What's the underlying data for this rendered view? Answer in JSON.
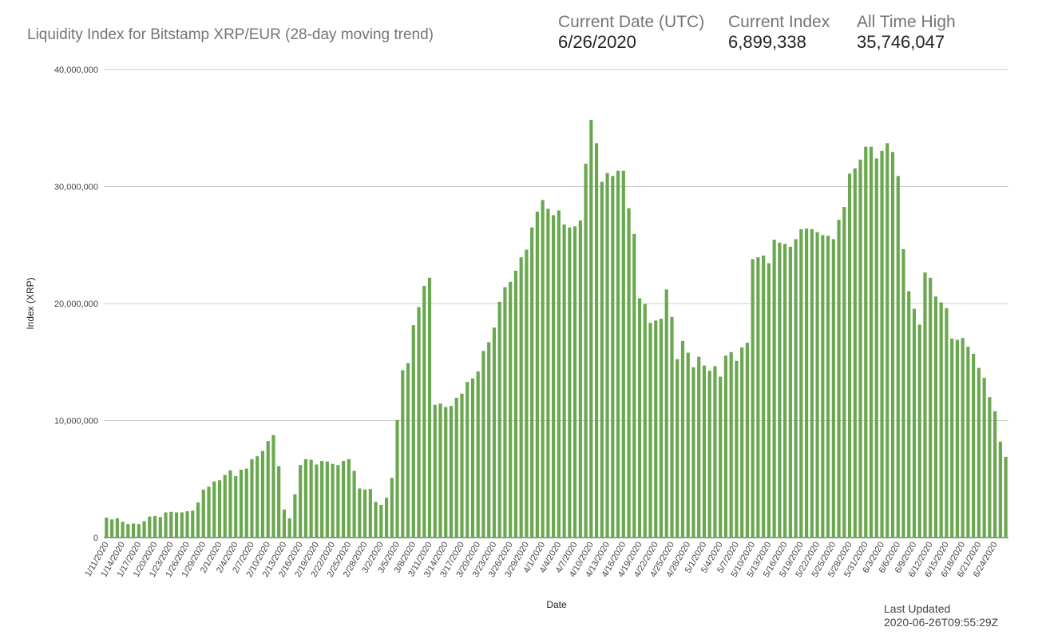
{
  "title": "Liquidity Index for Bitstamp XRP/EUR (28-day moving trend)",
  "stats": [
    {
      "label": "Current Date (UTC)",
      "value": "6/26/2020"
    },
    {
      "label": "Current Index",
      "value": "6,899,338"
    },
    {
      "label": "All Time High",
      "value": "35,746,047"
    }
  ],
  "last_updated": {
    "label": "Last Updated",
    "value": "2020-06-26T09:55:29Z"
  },
  "colors": {
    "bar": "#6aa84f",
    "grid": "#cccccc"
  },
  "chart_data": {
    "type": "bar",
    "start_date": "1/11/2020",
    "xlabel": "Date",
    "ylabel": "Index (XRP)",
    "ylim": [
      0,
      40000000
    ],
    "yticks": [
      {
        "value": 0,
        "label": "0"
      },
      {
        "value": 10000000,
        "label": "10,000,000"
      },
      {
        "value": 20000000,
        "label": "20,000,000"
      },
      {
        "value": 30000000,
        "label": "30,000,000"
      },
      {
        "value": 40000000,
        "label": "40,000,000"
      }
    ],
    "grid": true,
    "legend": "none",
    "xtick_labels": [
      "1/11/2020",
      "1/14/2020",
      "1/17/2020",
      "1/20/2020",
      "1/23/2020",
      "1/26/2020",
      "1/29/2020",
      "2/1/2020",
      "2/4/2020",
      "2/7/2020",
      "2/10/2020",
      "2/13/2020",
      "2/16/2020",
      "2/19/2020",
      "2/22/2020",
      "2/25/2020",
      "2/28/2020",
      "3/2/2020",
      "3/5/2020",
      "3/8/2020",
      "3/11/2020",
      "3/14/2020",
      "3/17/2020",
      "3/20/2020",
      "3/23/2020",
      "3/26/2020",
      "3/29/2020",
      "4/1/2020",
      "4/4/2020",
      "4/7/2020",
      "4/10/2020",
      "4/13/2020",
      "4/16/2020",
      "4/19/2020",
      "4/22/2020",
      "4/25/2020",
      "4/28/2020",
      "5/1/2020",
      "5/4/2020",
      "5/7/2020",
      "5/10/2020",
      "5/13/2020",
      "5/16/2020",
      "5/19/2020",
      "5/22/2020",
      "5/25/2020",
      "5/28/2020",
      "5/31/2020",
      "6/3/2020",
      "6/6/2020",
      "6/9/2020",
      "6/12/2020",
      "6/15/2020",
      "6/18/2020",
      "6/21/2020",
      "6/24/2020"
    ],
    "values": [
      1700000,
      1550000,
      1650000,
      1350000,
      1150000,
      1200000,
      1150000,
      1400000,
      1800000,
      1850000,
      1750000,
      2150000,
      2200000,
      2150000,
      2150000,
      2250000,
      2300000,
      3000000,
      4100000,
      4350000,
      4800000,
      4900000,
      5350000,
      5750000,
      5250000,
      5800000,
      5900000,
      6700000,
      6950000,
      7400000,
      8250000,
      8750000,
      6100000,
      2400000,
      1650000,
      3700000,
      6200000,
      6700000,
      6650000,
      6250000,
      6550000,
      6500000,
      6300000,
      6200000,
      6550000,
      6700000,
      5700000,
      4200000,
      4100000,
      4150000,
      3050000,
      2800000,
      3400000,
      5100000,
      10050000,
      14300000,
      14900000,
      18150000,
      19700000,
      21500000,
      22200000,
      11350000,
      11450000,
      11150000,
      11250000,
      11950000,
      12300000,
      13300000,
      13600000,
      14200000,
      15950000,
      16700000,
      17950000,
      20150000,
      21400000,
      21850000,
      22800000,
      23950000,
      24600000,
      26500000,
      27850000,
      28850000,
      28100000,
      27550000,
      27950000,
      26750000,
      26500000,
      26600000,
      27100000,
      31950000,
      35700000,
      33700000,
      30400000,
      31150000,
      30900000,
      31350000,
      31350000,
      28150000,
      25950000,
      20450000,
      19950000,
      18350000,
      18550000,
      18700000,
      21200000,
      18850000,
      15250000,
      16800000,
      15800000,
      14550000,
      15450000,
      14700000,
      14250000,
      14650000,
      13750000,
      15550000,
      15850000,
      15100000,
      16250000,
      16650000,
      23800000,
      23950000,
      24100000,
      23450000,
      25450000,
      25200000,
      25100000,
      24850000,
      25500000,
      26350000,
      26400000,
      26350000,
      26100000,
      25850000,
      25800000,
      25500000,
      27150000,
      28250000,
      31100000,
      31550000,
      32300000,
      33400000,
      33400000,
      32400000,
      33050000,
      33700000,
      32950000,
      30900000,
      24650000,
      21050000,
      19550000,
      18200000,
      22650000,
      22200000,
      20600000,
      20100000,
      19600000,
      17000000,
      16900000,
      17050000,
      16300000,
      15700000,
      14500000,
      13650000,
      12000000,
      10800000,
      8200000,
      6899338
    ]
  }
}
